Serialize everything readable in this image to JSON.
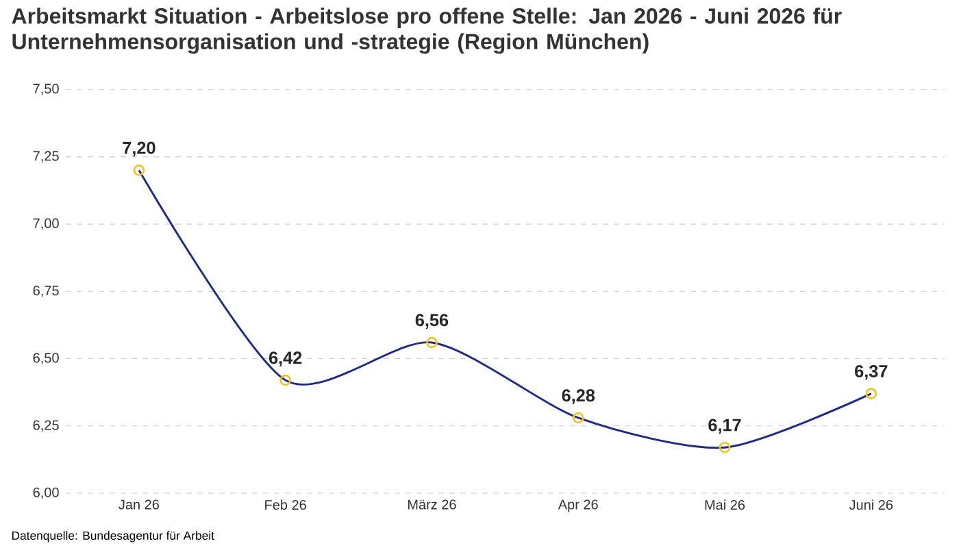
{
  "chart_data": {
    "type": "line",
    "title": "Arbeitsmarkt Situation - Arbeitslose pro offene Stelle: Jan 2026 - Juni 2026 für Unternehmensorganisation und -strategie (Region München)",
    "categories": [
      "Jan 26",
      "Feb 26",
      "März 26",
      "Apr 26",
      "Mai 26",
      "Juni 26"
    ],
    "series": [
      {
        "color": "#1b2a8c",
        "values": [
          7.2,
          6.42,
          6.56,
          6.28,
          6.17,
          6.37
        ],
        "value_labels": [
          "7,20",
          "6,42",
          "6,56",
          "6,28",
          "6,17",
          "6,37"
        ]
      }
    ],
    "marker": "circle",
    "line_style": "solid",
    "ylim": [
      6.0,
      7.5
    ],
    "yticks": [
      {
        "value": 6.0,
        "label": "6,00"
      },
      {
        "value": 6.25,
        "label": "6,25"
      },
      {
        "value": 6.5,
        "label": "6,50"
      },
      {
        "value": 6.75,
        "label": "6,75"
      },
      {
        "value": 7.0,
        "label": "7,00"
      },
      {
        "value": 7.25,
        "label": "7,25"
      },
      {
        "value": 7.5,
        "label": "7,50"
      }
    ],
    "grid": "y",
    "annotations": [
      "Datenquelle: Bundesagentur für Arbeit"
    ]
  }
}
